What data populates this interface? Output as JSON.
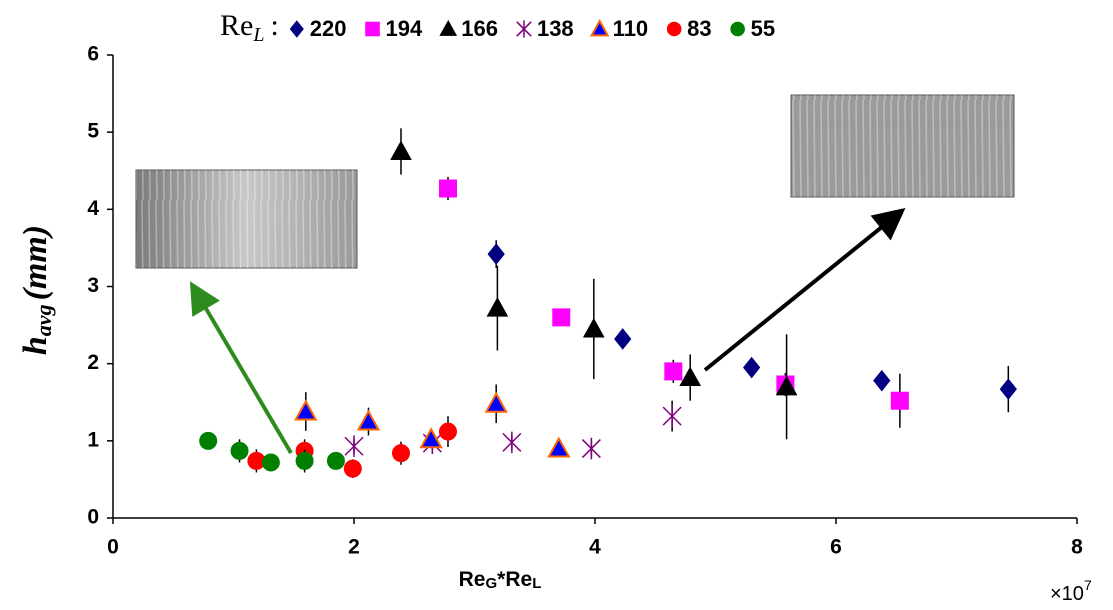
{
  "chart_data": {
    "type": "scatter",
    "legend_title": [
      "Re",
      "L",
      ":"
    ],
    "xlabel": [
      "Re",
      "G",
      "*Re",
      "L"
    ],
    "ylabel": [
      "h",
      "avg",
      "(mm)"
    ],
    "x_multiplier": [
      "×10",
      "7"
    ],
    "xlim": [
      0,
      8
    ],
    "xticks": [
      0,
      2,
      4,
      6,
      8
    ],
    "ylim": [
      0,
      6
    ],
    "yticks": [
      0,
      1,
      2,
      3,
      4,
      5,
      6
    ],
    "legend": "top",
    "series": [
      {
        "name": "220",
        "color": "#000080",
        "marker": "diamond",
        "x": [
          3.18,
          4.23,
          5.3,
          6.38,
          7.43
        ],
        "values": [
          3.42,
          2.32,
          1.95,
          1.78,
          1.67
        ],
        "errors": [
          0.18,
          0.08,
          0.1,
          0.12,
          0.3
        ]
      },
      {
        "name": "194",
        "color": "#ff00ff",
        "marker": "square",
        "x": [
          2.78,
          3.72,
          4.65,
          5.58,
          6.53
        ],
        "values": [
          4.27,
          2.6,
          1.9,
          1.73,
          1.52
        ],
        "errors": [
          0.15,
          0.1,
          0.15,
          0.15,
          0.35
        ]
      },
      {
        "name": "166",
        "color": "#000000",
        "marker": "triangle",
        "x": [
          2.39,
          3.19,
          3.99,
          4.79,
          5.59
        ],
        "values": [
          4.75,
          2.72,
          2.45,
          1.82,
          1.7
        ],
        "errors": [
          0.3,
          0.55,
          0.65,
          0.3,
          0.68
        ]
      },
      {
        "name": "138",
        "color": "#800080",
        "marker": "asterisk",
        "x": [
          2.0,
          2.65,
          3.31,
          3.97,
          4.64
        ],
        "values": [
          0.93,
          0.97,
          0.98,
          0.9,
          1.32
        ],
        "errors": [
          0.1,
          0.1,
          0.1,
          0.1,
          0.2
        ]
      },
      {
        "name": "110",
        "color": "#0000ff",
        "edgecolor": "#ff6600",
        "marker": "triangle",
        "x": [
          1.6,
          2.12,
          2.64,
          3.18,
          3.7
        ],
        "values": [
          1.38,
          1.25,
          1.02,
          1.48,
          0.9
        ],
        "errors": [
          0.25,
          0.18,
          0.1,
          0.25,
          0.05
        ]
      },
      {
        "name": "83",
        "color": "#ff0000",
        "marker": "circle",
        "x": [
          1.19,
          1.59,
          1.99,
          2.39,
          2.78
        ],
        "values": [
          0.74,
          0.87,
          0.64,
          0.84,
          1.12
        ],
        "errors": [
          0.15,
          0.15,
          0.12,
          0.15,
          0.2
        ]
      },
      {
        "name": "55",
        "color": "#008000",
        "marker": "circle",
        "x": [
          0.79,
          1.05,
          1.31,
          1.59,
          1.85
        ],
        "values": [
          1.0,
          0.87,
          0.72,
          0.74,
          0.74
        ],
        "errors": [
          0.05,
          0.15,
          0.08,
          0.15,
          0.1
        ]
      }
    ]
  }
}
